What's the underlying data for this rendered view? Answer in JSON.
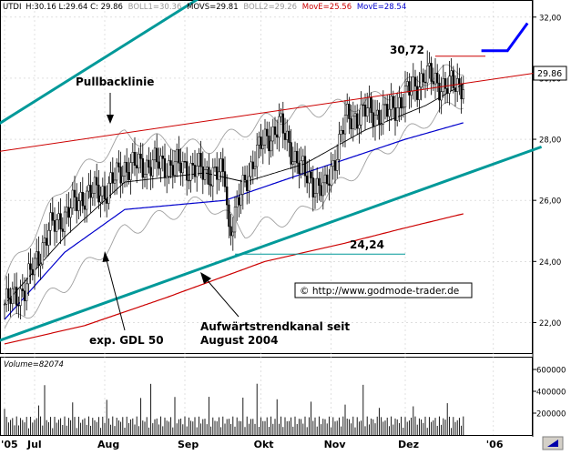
{
  "header": {
    "symbol": "UTDI",
    "values_text": "H:30.16 L:29.64 C: 29.86",
    "boll1": "BOLL1=30.36",
    "movs": "MOVS=29.81",
    "boll2": "BOLL2=29.26",
    "move1": "MovE=25.56",
    "move2": "MovE=28.54"
  },
  "price_tag": "29.86",
  "annotations": {
    "pullback": "Pullbacklinie",
    "high": "30,72",
    "low": "24,24",
    "gdl": "exp. GDL 50",
    "trend_line1": "Aufwärtstrendkanal seit",
    "trend_line2": "August 2004",
    "copyright": "© http://www.godmode-trader.de"
  },
  "volume_label": "Volume=82074",
  "colors": {
    "background": "#ffffff",
    "candles": "#000000",
    "bollinger": "#a0a0a0",
    "movs": "#000000",
    "ema_blue": "#0000cc",
    "ema_red": "#cc0000",
    "trendline": "#009999",
    "pullback": "#cc0000",
    "level_line": "#009999",
    "arrow_blue": "#0000ff",
    "grid": "#cccccc"
  },
  "chart_data": {
    "type": "candlestick",
    "y_ticks": [
      "32,00",
      "30,00",
      "28,00",
      "26,00",
      "24,00",
      "22,00"
    ],
    "y_tick_values": [
      32,
      30,
      28,
      26,
      24,
      22
    ],
    "ylim": [
      21,
      32.5
    ],
    "x_labels": [
      "'05",
      "Jul",
      "Aug",
      "Sep",
      "Okt",
      "Nov",
      "Dez",
      "'06"
    ],
    "x_label_index": [
      0,
      15,
      50,
      90,
      128,
      163,
      200,
      244
    ],
    "n_bars": 230,
    "volume_ticks": [
      "600000",
      "400000",
      "200000"
    ],
    "volume_tick_values": [
      600000,
      400000,
      200000
    ],
    "volume_lim": [
      0,
      700000
    ],
    "close_anchors": [
      [
        0,
        22.6
      ],
      [
        10,
        23.1
      ],
      [
        22,
        25.0
      ],
      [
        40,
        26.2
      ],
      [
        50,
        26.3
      ],
      [
        60,
        27.1
      ],
      [
        75,
        27.2
      ],
      [
        90,
        27.1
      ],
      [
        110,
        26.8
      ],
      [
        112,
        25.0
      ],
      [
        125,
        27.5
      ],
      [
        137,
        28.5
      ],
      [
        142,
        27.8
      ],
      [
        150,
        26.8
      ],
      [
        160,
        26.3
      ],
      [
        170,
        28.6
      ],
      [
        180,
        28.9
      ],
      [
        190,
        28.8
      ],
      [
        200,
        29.4
      ],
      [
        210,
        30.1
      ],
      [
        220,
        29.7
      ],
      [
        229,
        29.86
      ]
    ],
    "lines": {
      "ema_blue": [
        [
          0,
          22.1
        ],
        [
          30,
          24.3
        ],
        [
          60,
          25.7
        ],
        [
          110,
          26.0
        ],
        [
          150,
          26.9
        ],
        [
          200,
          28.0
        ],
        [
          229,
          28.54
        ]
      ],
      "ema_red": [
        [
          0,
          21.3
        ],
        [
          40,
          21.9
        ],
        [
          80,
          22.8
        ],
        [
          130,
          24.0
        ],
        [
          170,
          24.6
        ],
        [
          200,
          25.1
        ],
        [
          229,
          25.56
        ]
      ],
      "movs": [
        [
          0,
          22.6
        ],
        [
          30,
          24.8
        ],
        [
          60,
          26.6
        ],
        [
          100,
          26.9
        ],
        [
          120,
          26.6
        ],
        [
          150,
          27.2
        ],
        [
          180,
          28.3
        ],
        [
          210,
          29.1
        ],
        [
          229,
          29.81
        ]
      ],
      "boll_upper": [
        [
          0,
          23.4
        ],
        [
          30,
          26.5
        ],
        [
          60,
          28.1
        ],
        [
          100,
          27.7
        ],
        [
          130,
          28.6
        ],
        [
          150,
          28.9
        ],
        [
          180,
          29.2
        ],
        [
          210,
          30.0
        ],
        [
          229,
          30.36
        ]
      ],
      "boll_lower": [
        [
          0,
          21.8
        ],
        [
          30,
          23.2
        ],
        [
          60,
          25.0
        ],
        [
          100,
          26.0
        ],
        [
          120,
          25.0
        ],
        [
          150,
          25.6
        ],
        [
          180,
          27.2
        ],
        [
          210,
          28.6
        ],
        [
          229,
          29.26
        ]
      ]
    },
    "trendlines": {
      "pullback": [
        [
          -3,
          27.6
        ],
        [
          268,
          30.2
        ]
      ],
      "channel_upper": [
        [
          -3,
          28.5
        ],
        [
          121,
          33.6
        ]
      ],
      "channel_lower": [
        [
          -3,
          21.4
        ],
        [
          268,
          27.75
        ]
      ],
      "level_high": [
        [
          215,
          30.72
        ],
        [
          240,
          30.72
        ]
      ],
      "level_low": [
        [
          115,
          24.24
        ],
        [
          200,
          24.24
        ]
      ],
      "blue_arrow": [
        [
          238,
          30.9
        ],
        [
          251,
          30.9
        ],
        [
          261,
          31.8
        ]
      ]
    }
  }
}
